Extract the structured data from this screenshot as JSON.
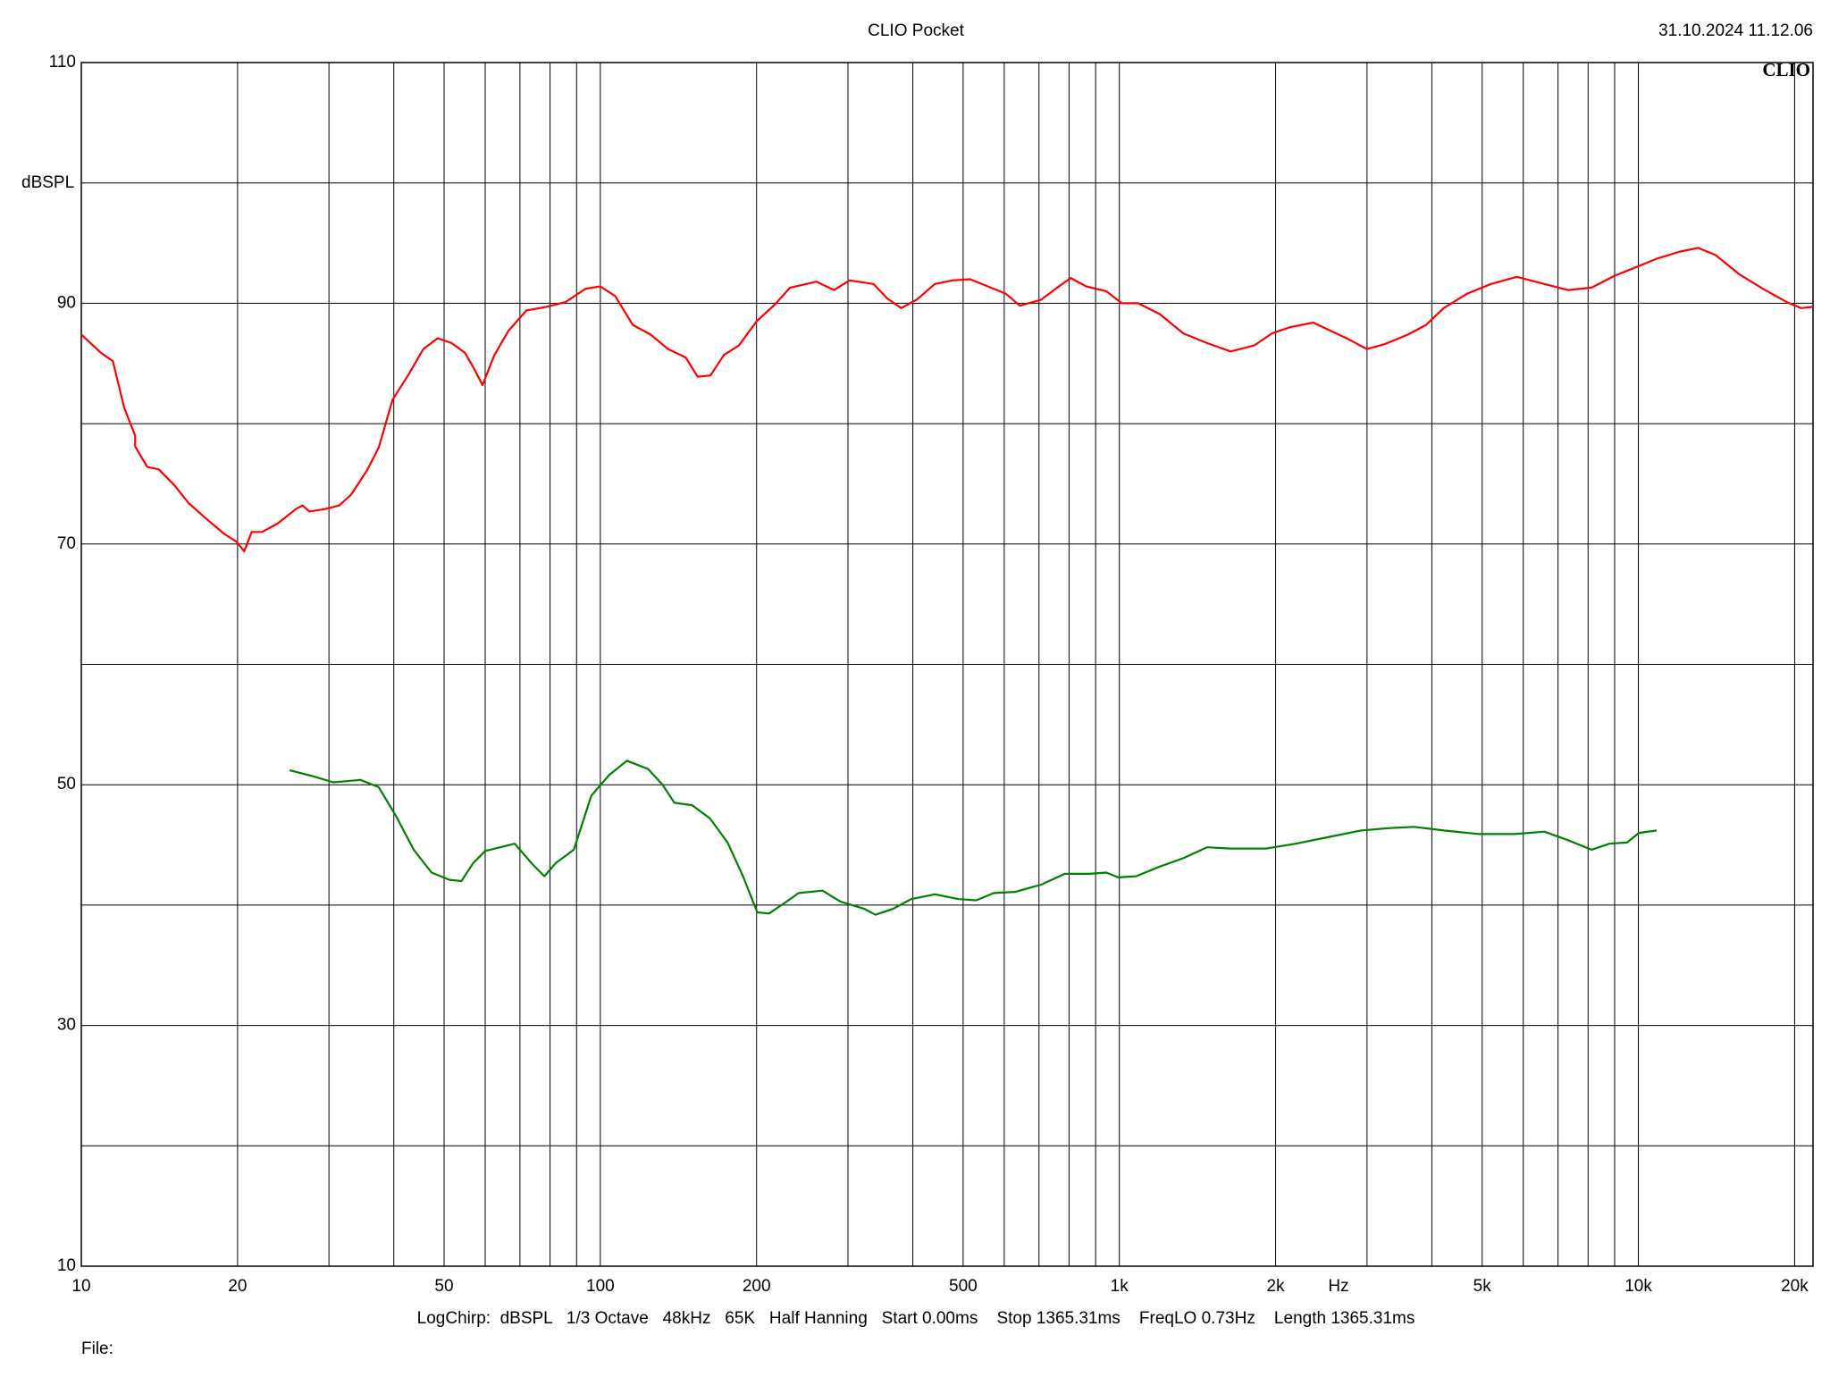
{
  "chart_data": {
    "type": "line",
    "title": "CLIO Pocket",
    "timestamp": "31.10.2024 11.12.06",
    "logo": "CLIO",
    "y_label": "dBSPL",
    "x_label": "Hz",
    "footer": "LogChirp:  dBSPL   1/3 Octave   48kHz   65K   Half Hanning   Start 0.00ms    Stop 1365.31ms    FreqLO 0.73Hz    Length 1365.31ms",
    "file_label": "File:",
    "log_x": true,
    "grid": true,
    "xlim": [
      10,
      21700
    ],
    "xticks": [
      10,
      20,
      50,
      100,
      200,
      500,
      {
        "value": 1000,
        "label": "1k"
      },
      {
        "value": 2000,
        "label": "2k"
      },
      {
        "value": 5000,
        "label": "5k"
      },
      {
        "value": 10000,
        "label": "10k"
      },
      {
        "value": 20000,
        "label": "20k"
      }
    ],
    "xminorticks": [
      30,
      40,
      60,
      70,
      80,
      90,
      300,
      400,
      600,
      700,
      800,
      900,
      3000,
      4000,
      6000,
      7000,
      8000,
      9000
    ],
    "ylim": [
      10,
      110
    ],
    "yticks": [
      10,
      30,
      50,
      70,
      90,
      110
    ],
    "yminorticks": [
      20,
      40,
      60,
      80,
      100
    ],
    "series": [
      {
        "color": "#ff0000",
        "x": [
          10,
          10.9,
          11.5,
          12.1,
          12.7,
          12.7,
          13.4,
          14.1,
          15.1,
          16.1,
          17.3,
          18.9,
          19.9,
          20.6,
          21.3,
          22.3,
          23.9,
          25.9,
          26.7,
          27.5,
          29.5,
          31.4,
          33.1,
          35.5,
          37.4,
          39.8,
          42.6,
          45.6,
          48.6,
          51.7,
          54.8,
          56.9,
          59.3,
          62.5,
          66.5,
          72,
          78.7,
          85.7,
          93.6,
          100,
          106.8,
          115.5,
          125,
          135,
          146,
          154,
          163,
          173,
          185,
          200,
          217,
          232,
          261,
          282,
          302,
          336,
          357,
          380,
          407,
          441,
          477,
          516,
          558,
          604,
          643,
          707,
          765,
          806,
          863,
          944,
          1011,
          1087,
          1196,
          1328,
          1475,
          1638,
          1820,
          1968,
          2129,
          2364,
          2558,
          2768,
          2998,
          3243,
          3600,
          3899,
          4217,
          4682,
          5200,
          5834,
          6589,
          7315,
          8126,
          9019,
          9772,
          10840,
          12040,
          13030,
          14090,
          15660,
          17380,
          19320,
          20580,
          21700
        ],
        "values": [
          87.4,
          85.9,
          85.2,
          81.3,
          79.0,
          78.1,
          76.4,
          76.2,
          74.9,
          73.4,
          72.2,
          70.8,
          70.2,
          69.4,
          71.0,
          71.0,
          71.7,
          72.9,
          73.2,
          72.7,
          72.9,
          73.2,
          74.1,
          76.1,
          78.0,
          82.0,
          84.0,
          86.2,
          87.1,
          86.7,
          85.9,
          84.7,
          83.2,
          85.7,
          87.7,
          89.4,
          89.7,
          90.1,
          91.2,
          91.4,
          90.6,
          88.2,
          87.4,
          86.2,
          85.5,
          83.9,
          84.0,
          85.7,
          86.5,
          88.5,
          89.9,
          91.3,
          91.8,
          91.1,
          91.9,
          91.6,
          90.4,
          89.6,
          90.3,
          91.6,
          91.9,
          92.0,
          91.4,
          90.8,
          89.8,
          90.3,
          91.4,
          92.1,
          91.4,
          91.0,
          90.0,
          90.0,
          89.1,
          87.5,
          86.7,
          86.0,
          86.5,
          87.5,
          88.0,
          88.4,
          87.7,
          87.0,
          86.2,
          86.6,
          87.4,
          88.2,
          89.6,
          90.8,
          91.6,
          92.2,
          91.6,
          91.1,
          91.3,
          92.3,
          92.9,
          93.7,
          94.3,
          94.6,
          94.0,
          92.4,
          91.2,
          90.1,
          89.6,
          89.7
        ]
      },
      {
        "color": "#008000",
        "x": [
          25.2,
          28,
          30.6,
          34.5,
          37.4,
          40.4,
          43.7,
          47.3,
          51.2,
          54,
          56.9,
          60,
          68.4,
          74,
          78,
          82.1,
          88.9,
          96.1,
          104,
          112.5,
          123.7,
          131.8,
          138.9,
          150.3,
          162.6,
          175.9,
          188.3,
          200.6,
          211.3,
          228.6,
          241,
          268,
          290,
          322,
          339,
          367,
          397,
          441,
          490,
          530,
          573,
          630,
          707,
          785,
          873,
          944,
          995,
          1077,
          1196,
          1328,
          1475,
          1638,
          1919,
          2187,
          2494,
          2918,
          3326,
          3696,
          4217,
          4935,
          5776,
          6589,
          7315,
          8126,
          8797,
          9510,
          10020,
          10840
        ],
        "values": [
          51.2,
          50.7,
          50.2,
          50.4,
          49.8,
          47.4,
          44.6,
          42.7,
          42.1,
          42.0,
          43.5,
          44.5,
          45.1,
          43.4,
          42.4,
          43.5,
          44.6,
          49.1,
          50.8,
          52.0,
          51.3,
          50.0,
          48.5,
          48.3,
          47.2,
          45.2,
          42.4,
          39.4,
          39.3,
          40.3,
          41.0,
          41.2,
          40.3,
          39.7,
          39.2,
          39.7,
          40.5,
          40.9,
          40.5,
          40.4,
          41.0,
          41.1,
          41.7,
          42.6,
          42.6,
          42.7,
          42.3,
          42.4,
          43.2,
          43.9,
          44.8,
          44.7,
          44.7,
          45.1,
          45.6,
          46.2,
          46.4,
          46.5,
          46.2,
          45.9,
          45.9,
          46.1,
          45.4,
          44.6,
          45.1,
          45.2,
          46.0,
          46.2
        ]
      }
    ]
  }
}
